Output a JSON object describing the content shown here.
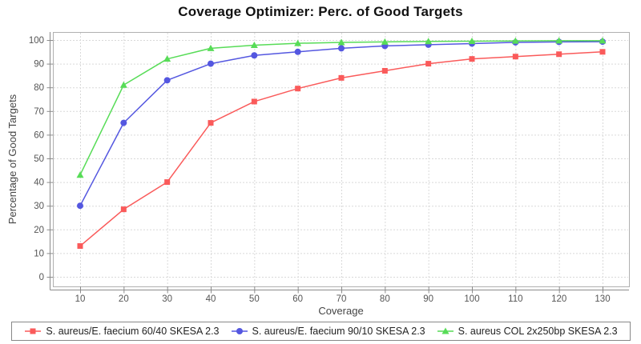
{
  "chart_data": {
    "type": "line",
    "title": "Coverage Optimizer: Perc. of Good Targets",
    "xlabel": "Coverage",
    "ylabel": "Percentage of Good Targets",
    "x": [
      10,
      20,
      30,
      40,
      50,
      60,
      70,
      80,
      90,
      100,
      110,
      120,
      130
    ],
    "y_ticks": [
      0,
      10,
      20,
      30,
      40,
      50,
      60,
      70,
      80,
      90,
      100
    ],
    "xlim": [
      4,
      136
    ],
    "ylim": [
      -4,
      103.5
    ],
    "grid": "dashed",
    "legend_position": "bottom",
    "series": [
      {
        "name": "S. aureus/E. faecium 60/40 SKESA 2.3",
        "marker": "square",
        "color": "#fa5a5a",
        "values": [
          13,
          28.5,
          40,
          65,
          74,
          79.5,
          84,
          87,
          90,
          92,
          93,
          94,
          95
        ]
      },
      {
        "name": "S. aureus/E. faecium 90/10 SKESA 2.3",
        "marker": "circle",
        "color": "#5457e0",
        "values": [
          30,
          65,
          83,
          90,
          93.5,
          95,
          96.5,
          97.5,
          98,
          98.5,
          99,
          99.2,
          99.3
        ]
      },
      {
        "name": "S. aureus COL 2x250bp SKESA 2.3",
        "marker": "triangle",
        "color": "#57dc57",
        "values": [
          43,
          81,
          92,
          96.5,
          97.8,
          98.6,
          99,
          99.2,
          99.4,
          99.5,
          99.6,
          99.7,
          99.7
        ]
      }
    ]
  },
  "colors": {
    "grid": "#d9d9d9",
    "plot_border": "#b0b0b0",
    "axis_line": "#8a8a8a",
    "tick_text": "#555555",
    "axis_title_text": "#444444",
    "title_text": "#111111",
    "legend_border": "#888888",
    "legend_text": "#222222",
    "background": "#ffffff"
  }
}
